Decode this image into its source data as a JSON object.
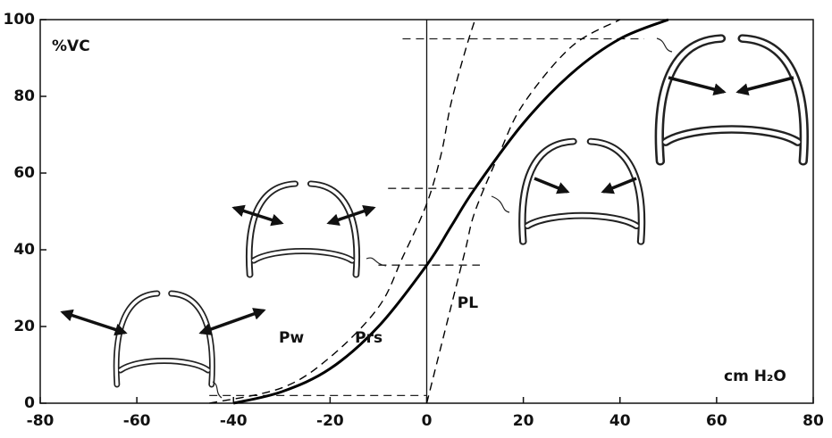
{
  "chart_data": {
    "type": "line",
    "y_label": "%VC",
    "x_label": "cm H₂O",
    "xlim": [
      -80,
      80
    ],
    "xticks": [
      -80,
      -60,
      -40,
      -20,
      0,
      20,
      40,
      60,
      80
    ],
    "ylim": [
      0,
      100
    ],
    "yticks": [
      0,
      20,
      40,
      60,
      80,
      100
    ],
    "series": [
      {
        "name": "Prs",
        "color": "#000000",
        "dash": false,
        "x": [
          -40,
          -30,
          -20,
          -10,
          0,
          5,
          10,
          20,
          30,
          40,
          50
        ],
        "values": [
          0,
          3,
          9,
          20,
          36,
          46,
          56,
          73,
          86,
          95,
          100
        ]
      },
      {
        "name": "Pw",
        "color": "#000000",
        "dash": true,
        "x": [
          -45,
          -30,
          -20,
          -10,
          -5,
          0,
          3,
          5,
          8,
          10
        ],
        "values": [
          0,
          4,
          12,
          25,
          38,
          52,
          65,
          78,
          92,
          100
        ]
      },
      {
        "name": "PL",
        "color": "#000000",
        "dash": true,
        "x": [
          0,
          2,
          5,
          8,
          10,
          15,
          20,
          30,
          40
        ],
        "values": [
          0,
          10,
          25,
          40,
          50,
          65,
          78,
          93,
          100
        ]
      }
    ],
    "reference_lines": [
      {
        "y": 95,
        "x": [
          -5,
          45
        ]
      },
      {
        "y": 56,
        "x": [
          -8,
          12
        ]
      },
      {
        "y": 36,
        "x": [
          -10,
          11
        ]
      },
      {
        "y": 2,
        "x": [
          -45,
          0
        ]
      }
    ]
  }
}
